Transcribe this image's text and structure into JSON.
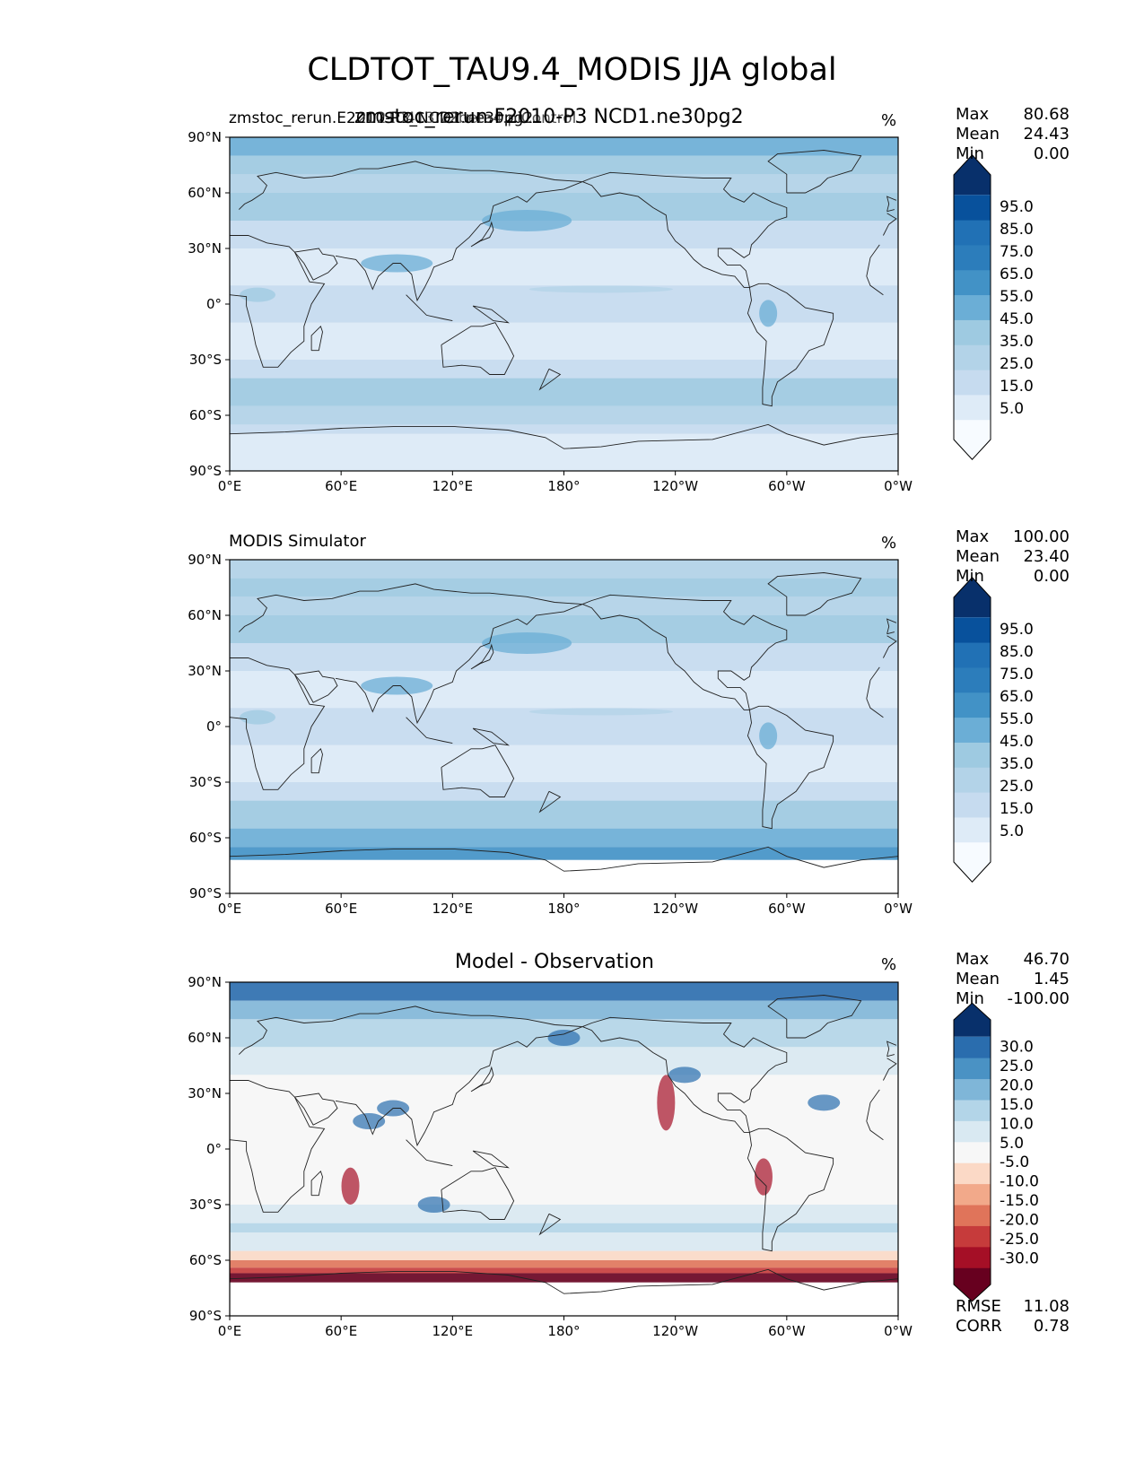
{
  "figure_title": "CLDTOT_TAU9.4_MODIS JJA global",
  "lat_ticks": [
    "90°N",
    "60°N",
    "30°N",
    "0°",
    "30°S",
    "60°S",
    "90°S"
  ],
  "lon_ticks": [
    "0°E",
    "60°E",
    "120°E",
    "180°",
    "120°W",
    "60°W",
    "0°W"
  ],
  "seq_colors": [
    "#f7fbff",
    "#deebf7",
    "#c6dbef",
    "#b3d3e8",
    "#9ecae1",
    "#6baed6",
    "#4292c6",
    "#2c7dbb",
    "#2171b5",
    "#08519c",
    "#08306b"
  ],
  "div_colors": [
    "#67001f",
    "#a50f26",
    "#c63b3b",
    "#e0745a",
    "#f2a98a",
    "#fbd9c6",
    "#f7f7f7",
    "#d9e9f2",
    "#b3d5e8",
    "#7fb6d8",
    "#4a92c4",
    "#2a6dae",
    "#08306b"
  ],
  "chart_data": [
    {
      "type": "heatmap",
      "left_title": "zmstoc_rerun.E2010-P3_NCD1.ne30pg2",
      "left_title_overlap": "20210413.v2beta4.piControl",
      "center_title": "zmstoc_rerun.F2010-P3 NCD1.ne30pg2",
      "units": "%",
      "stats": {
        "Max": "80.68",
        "Mean": "24.43",
        "Min": "0.00"
      },
      "colorbar_ticks": [
        "95.0",
        "85.0",
        "75.0",
        "65.0",
        "55.0",
        "45.0",
        "35.0",
        "25.0",
        "15.0",
        "5.0"
      ],
      "palette": "seq",
      "xlim": [
        0,
        360
      ],
      "ylim": [
        -90,
        90
      ],
      "kind": "model"
    },
    {
      "type": "heatmap",
      "left_title": "MODIS Simulator",
      "center_title": "",
      "units": "%",
      "stats": {
        "Max": "100.00",
        "Mean": "23.40",
        "Min": "0.00"
      },
      "colorbar_ticks": [
        "95.0",
        "85.0",
        "75.0",
        "65.0",
        "55.0",
        "45.0",
        "35.0",
        "25.0",
        "15.0",
        "5.0"
      ],
      "palette": "seq",
      "xlim": [
        0,
        360
      ],
      "ylim": [
        -90,
        90
      ],
      "kind": "obs"
    },
    {
      "type": "heatmap",
      "left_title": "",
      "center_title": "Model - Observation",
      "units": "%",
      "stats": {
        "Max": "46.70",
        "Mean": "1.45",
        "Min": "-100.00"
      },
      "extra_stats": {
        "RMSE": "11.08",
        "CORR": "0.78"
      },
      "colorbar_ticks": [
        "30.0",
        "25.0",
        "20.0",
        "15.0",
        "10.0",
        "5.0",
        "-5.0",
        "-10.0",
        "-15.0",
        "-20.0",
        "-25.0",
        "-30.0"
      ],
      "palette": "div",
      "xlim": [
        0,
        360
      ],
      "ylim": [
        -90,
        90
      ],
      "kind": "diff"
    }
  ]
}
